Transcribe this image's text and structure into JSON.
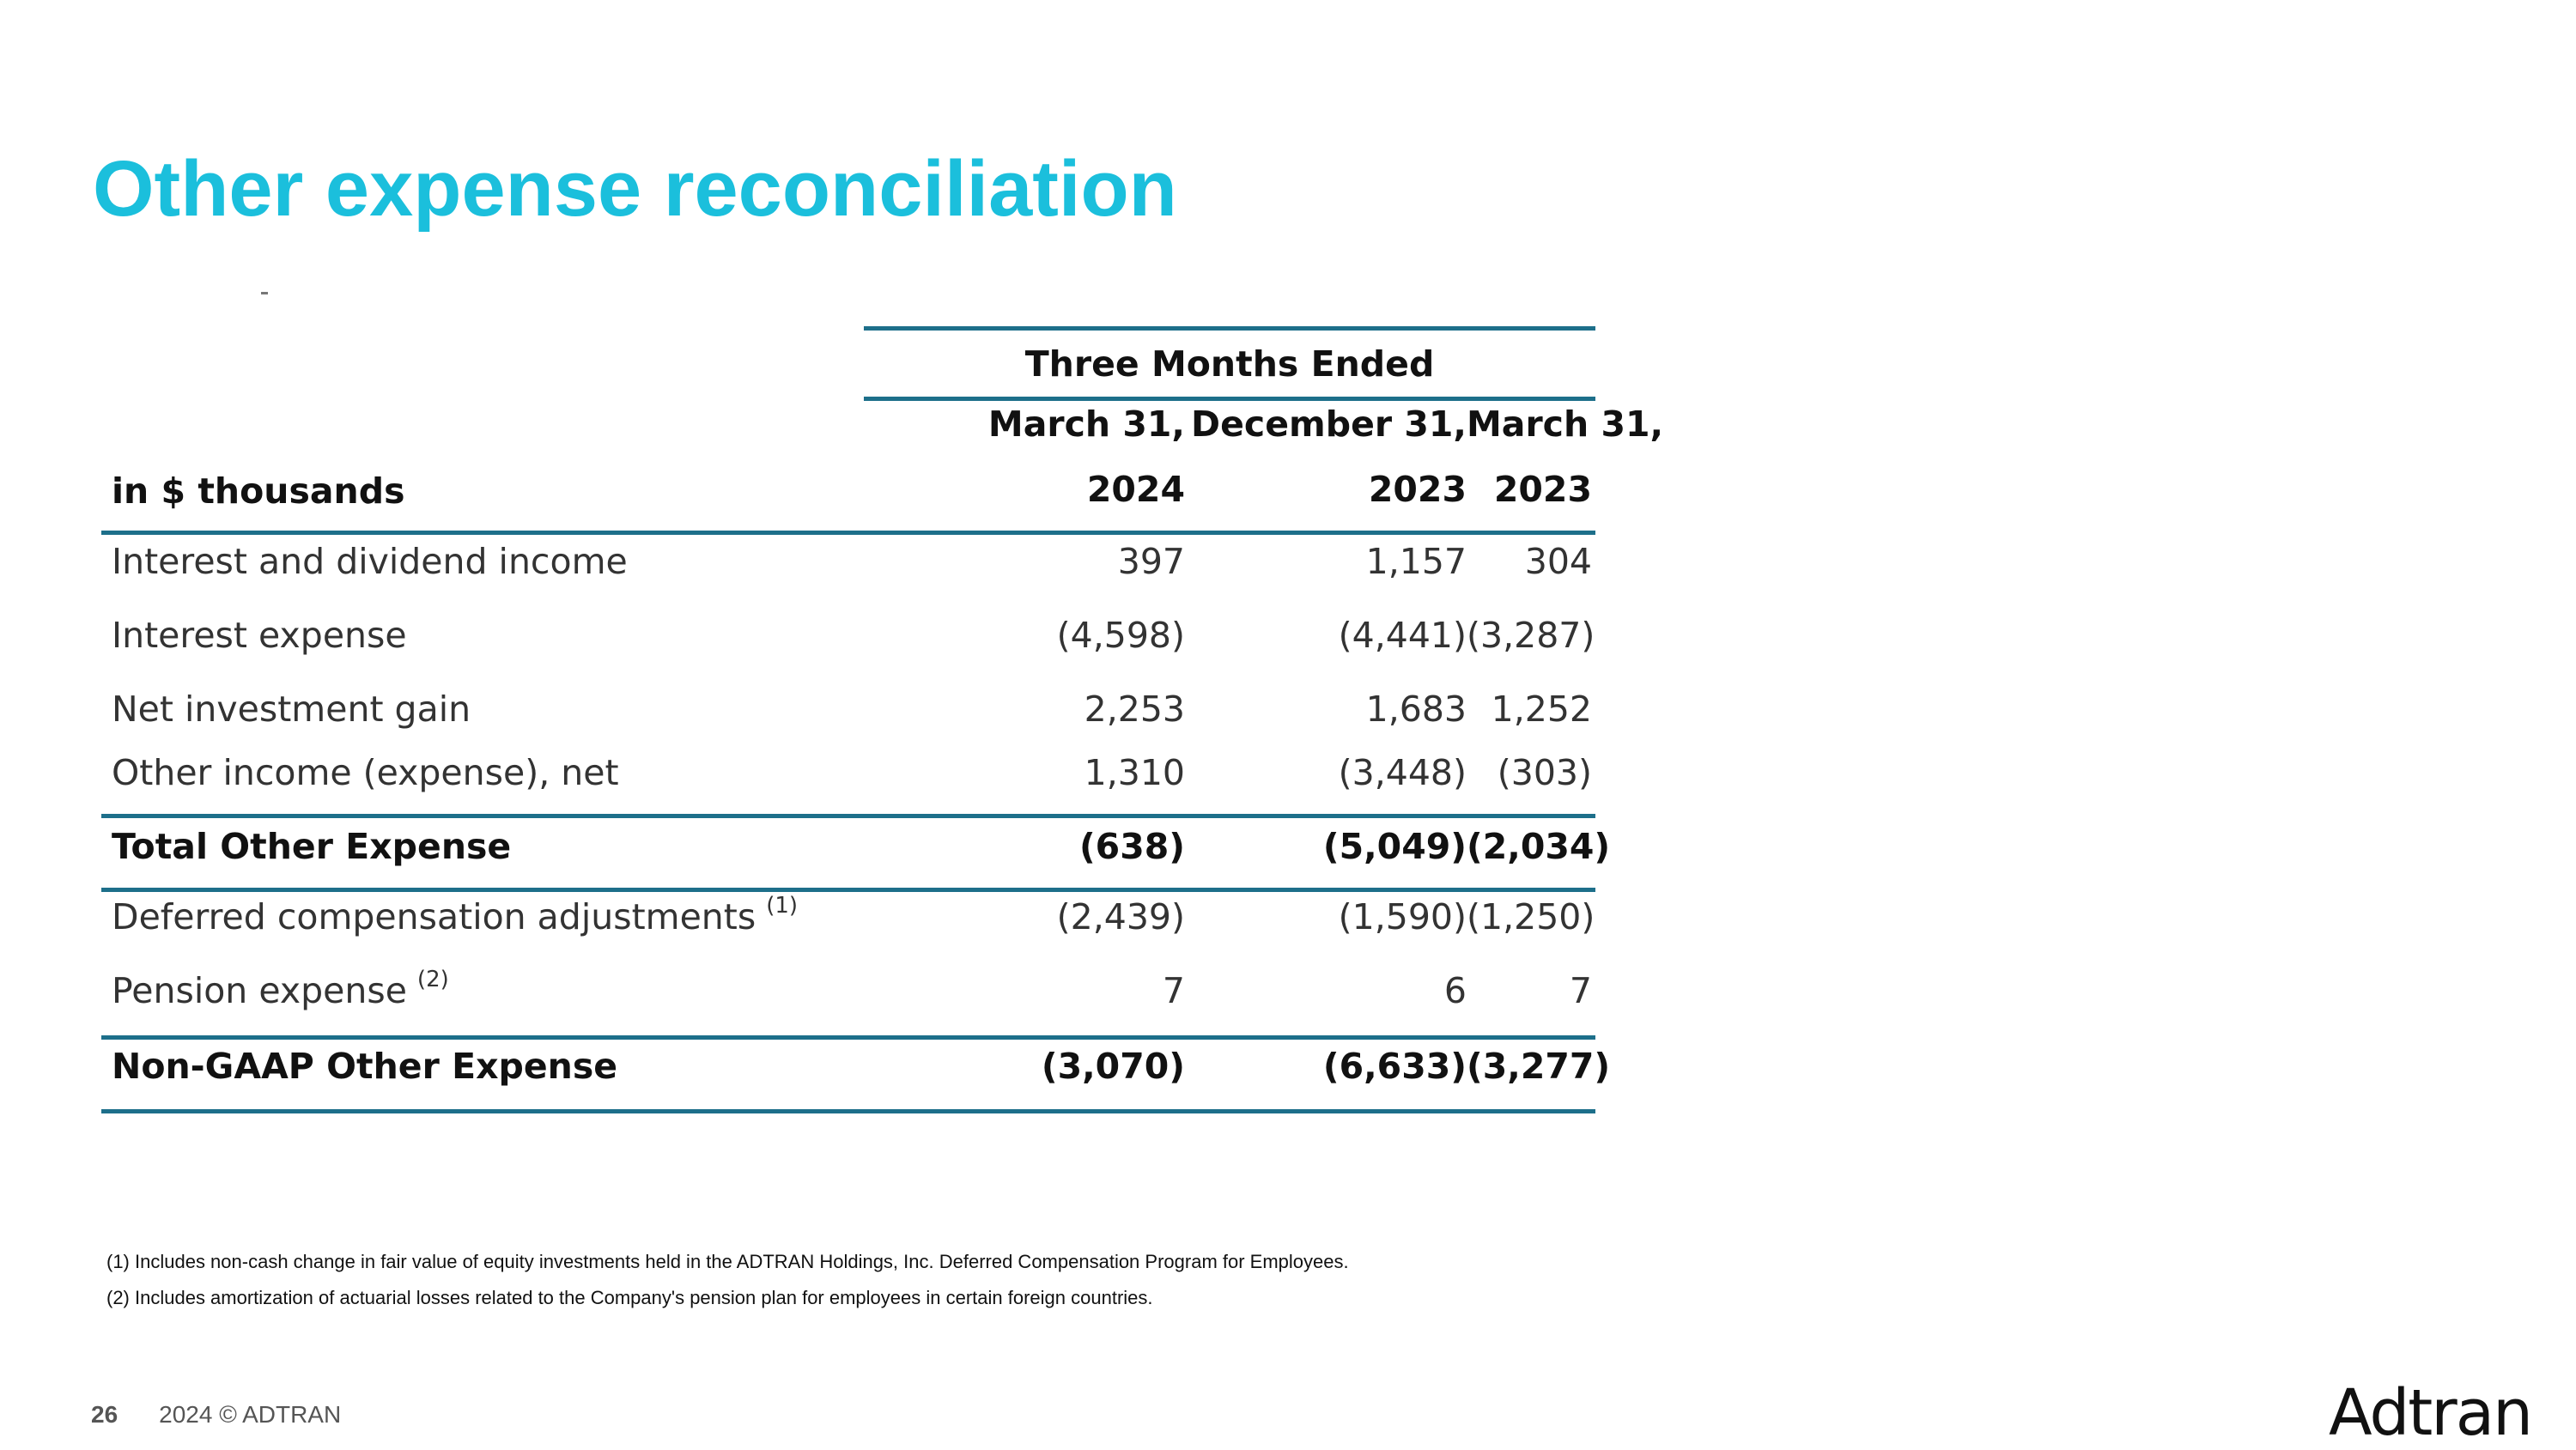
{
  "slide": {
    "title": "Other expense reconciliation",
    "page_number": "26",
    "copyright": "2024 © ADTRAN",
    "logo_text": "Adtran",
    "accent_color": "#1bbfdc",
    "rule_color": "#1d6f8a"
  },
  "table": {
    "group_header": "Three Months Ended",
    "units_label": "in $ thousands",
    "columns": [
      {
        "line1": "March 31,",
        "line2": "2024"
      },
      {
        "line1": "December 31,",
        "line2": "2023"
      },
      {
        "line1": "March 31,",
        "line2": "2023"
      }
    ],
    "rows": [
      {
        "label": "Interest and dividend income",
        "note": "",
        "values": [
          "397",
          "1,157",
          "304"
        ],
        "bold": false
      },
      {
        "label": "Interest expense",
        "note": "",
        "values": [
          "(4,598)",
          "(4,441)",
          "(3,287)"
        ],
        "bold": false
      },
      {
        "label": "Net investment gain",
        "note": "",
        "values": [
          "2,253",
          "1,683",
          "1,252"
        ],
        "bold": false
      },
      {
        "label": "Other income (expense), net",
        "note": "",
        "values": [
          "1,310",
          "(3,448)",
          "(303)"
        ],
        "bold": false
      },
      {
        "label": "Total Other Expense",
        "note": "",
        "values": [
          "(638)",
          "(5,049)",
          "(2,034)"
        ],
        "bold": true
      },
      {
        "label": "Deferred compensation adjustments",
        "note": "(1)",
        "values": [
          "(2,439)",
          "(1,590)",
          "(1,250)"
        ],
        "bold": false
      },
      {
        "label": "Pension expense",
        "note": "(2)",
        "values": [
          "7",
          "6",
          "7"
        ],
        "bold": false
      },
      {
        "label": "Non-GAAP Other Expense",
        "note": "",
        "values": [
          "(3,070)",
          "(6,633)",
          "(3,277)"
        ],
        "bold": true
      }
    ]
  },
  "footnotes": [
    "(1) Includes non-cash change in fair value of equity investments held in the ADTRAN Holdings, Inc. Deferred Compensation Program for Employees.",
    "(2) Includes amortization of actuarial losses related to the Company's pension plan for employees in certain foreign countries."
  ]
}
